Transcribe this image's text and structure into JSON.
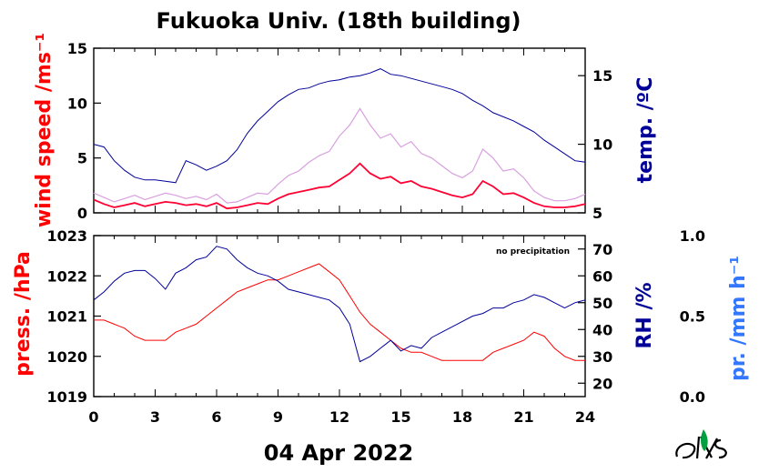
{
  "title": "Fukuoka Univ. (18th building)",
  "date_label": "04 Apr 2022",
  "note": "no precipitation",
  "colors": {
    "wind": "#ff0033",
    "wind_gust": "#d9a0e0",
    "temp": "#000099",
    "press": "#ff0000",
    "rh": "#000099",
    "precip": "#3377ff"
  },
  "chart_data": [
    {
      "type": "line",
      "panel": "top",
      "xlim": [
        0,
        24
      ],
      "x_ticks": [
        0,
        3,
        6,
        9,
        12,
        15,
        18,
        21,
        24
      ],
      "left_axis": {
        "label": "wind speed /ms⁻¹",
        "ylim": [
          0,
          15
        ],
        "ticks": [
          0,
          5,
          10,
          15
        ]
      },
      "right_axis": {
        "label": "temp. /ºC",
        "ylim": [
          5,
          17
        ],
        "ticks": [
          5,
          10,
          15
        ]
      },
      "series": [
        {
          "name": "wind",
          "axis": "left",
          "x": [
            0,
            0.5,
            1,
            1.5,
            2,
            2.5,
            3,
            3.5,
            4,
            4.5,
            5,
            5.5,
            6,
            6.5,
            7,
            7.5,
            8,
            8.5,
            9,
            9.5,
            10,
            10.5,
            11,
            11.5,
            12,
            12.5,
            13,
            13.5,
            14,
            14.5,
            15,
            15.5,
            16,
            16.5,
            17,
            17.5,
            18,
            18.5,
            19,
            19.5,
            20,
            20.5,
            21,
            21.5,
            22,
            22.5,
            23,
            23.5,
            24
          ],
          "y": [
            1.2,
            0.8,
            0.5,
            0.7,
            0.9,
            0.6,
            0.8,
            1.0,
            0.9,
            0.7,
            0.8,
            0.6,
            0.9,
            0.4,
            0.5,
            0.7,
            0.9,
            0.8,
            1.3,
            1.7,
            1.9,
            2.1,
            2.3,
            2.4,
            3.0,
            3.6,
            4.5,
            3.6,
            3.1,
            3.3,
            2.7,
            2.9,
            2.4,
            2.2,
            1.9,
            1.6,
            1.4,
            1.7,
            2.9,
            2.4,
            1.7,
            1.8,
            1.4,
            0.9,
            0.6,
            0.5,
            0.5,
            0.6,
            0.8
          ]
        },
        {
          "name": "wind gust",
          "axis": "left",
          "x": [
            0,
            0.5,
            1,
            1.5,
            2,
            2.5,
            3,
            3.5,
            4,
            4.5,
            5,
            5.5,
            6,
            6.5,
            7,
            7.5,
            8,
            8.5,
            9,
            9.5,
            10,
            10.5,
            11,
            11.5,
            12,
            12.5,
            13,
            13.5,
            14,
            14.5,
            15,
            15.5,
            16,
            16.5,
            17,
            17.5,
            18,
            18.5,
            19,
            19.5,
            20,
            20.5,
            21,
            21.5,
            22,
            22.5,
            23,
            23.5,
            24
          ],
          "y": [
            1.8,
            1.4,
            1.0,
            1.3,
            1.6,
            1.2,
            1.5,
            1.8,
            1.6,
            1.3,
            1.5,
            1.2,
            1.7,
            0.9,
            1.0,
            1.4,
            1.8,
            1.7,
            2.6,
            3.4,
            3.8,
            4.6,
            5.2,
            5.6,
            7.0,
            8.0,
            9.5,
            8.0,
            6.8,
            7.2,
            6.0,
            6.5,
            5.4,
            5.0,
            4.3,
            3.6,
            3.2,
            3.8,
            5.8,
            5.0,
            3.8,
            4.0,
            3.2,
            2.0,
            1.4,
            1.1,
            1.1,
            1.3,
            1.7
          ]
        },
        {
          "name": "temp",
          "axis": "right",
          "x": [
            0,
            0.5,
            1,
            1.5,
            2,
            2.5,
            3,
            3.5,
            4,
            4.5,
            5,
            5.5,
            6,
            6.5,
            7,
            7.5,
            8,
            8.5,
            9,
            9.5,
            10,
            10.5,
            11,
            11.5,
            12,
            12.5,
            13,
            13.5,
            14,
            14.5,
            15,
            15.5,
            16,
            16.5,
            17,
            17.5,
            18,
            18.5,
            19,
            19.5,
            20,
            20.5,
            21,
            21.5,
            22,
            22.5,
            23,
            23.5,
            24
          ],
          "y": [
            10.0,
            9.8,
            8.8,
            8.1,
            7.6,
            7.4,
            7.4,
            7.3,
            7.2,
            8.8,
            8.5,
            8.1,
            8.4,
            8.8,
            9.6,
            10.8,
            11.7,
            12.4,
            13.1,
            13.6,
            14.0,
            14.1,
            14.4,
            14.6,
            14.7,
            14.9,
            15.0,
            15.2,
            15.5,
            15.1,
            15.0,
            14.8,
            14.6,
            14.4,
            14.2,
            14.0,
            13.7,
            13.2,
            12.8,
            12.3,
            12.0,
            11.7,
            11.3,
            10.9,
            10.3,
            9.8,
            9.3,
            8.8,
            8.7
          ]
        }
      ]
    },
    {
      "type": "line",
      "panel": "bottom",
      "xlim": [
        0,
        24
      ],
      "x_ticks": [
        0,
        3,
        6,
        9,
        12,
        15,
        18,
        21,
        24
      ],
      "left_axis": {
        "label": "press. /hPa",
        "ylim": [
          1019,
          1023
        ],
        "ticks": [
          1019,
          1020,
          1021,
          1022,
          1023
        ]
      },
      "right_axis": {
        "label": "RH /%",
        "ylim": [
          15,
          75
        ],
        "ticks": [
          20,
          30,
          40,
          50,
          60,
          70
        ]
      },
      "extra_axis": {
        "label": "pr. /mm h⁻¹",
        "ylim": [
          0,
          1
        ],
        "ticks": [
          "0.0",
          "0.5",
          "1.0"
        ]
      },
      "series": [
        {
          "name": "press",
          "axis": "left",
          "x": [
            0,
            0.5,
            1,
            1.5,
            2,
            2.5,
            3,
            3.5,
            4,
            4.5,
            5,
            5.5,
            6,
            6.5,
            7,
            7.5,
            8,
            8.5,
            9,
            9.5,
            10,
            10.5,
            11,
            11.5,
            12,
            12.5,
            13,
            13.5,
            14,
            14.5,
            15,
            15.5,
            16,
            16.5,
            17,
            17.5,
            18,
            18.5,
            19,
            19.5,
            20,
            20.5,
            21,
            21.5,
            22,
            22.5,
            23,
            23.5,
            24
          ],
          "y": [
            1020.9,
            1020.9,
            1020.8,
            1020.7,
            1020.5,
            1020.4,
            1020.4,
            1020.4,
            1020.6,
            1020.7,
            1020.8,
            1021.0,
            1021.2,
            1021.4,
            1021.6,
            1021.7,
            1021.8,
            1021.9,
            1021.9,
            1022.0,
            1022.1,
            1022.2,
            1022.3,
            1022.1,
            1021.9,
            1021.5,
            1021.1,
            1020.8,
            1020.6,
            1020.4,
            1020.2,
            1020.1,
            1020.1,
            1020.0,
            1019.9,
            1019.9,
            1019.9,
            1019.9,
            1019.9,
            1020.1,
            1020.2,
            1020.3,
            1020.4,
            1020.6,
            1020.5,
            1020.2,
            1020.0,
            1019.9,
            1019.9
          ]
        },
        {
          "name": "RH",
          "axis": "right",
          "x": [
            0,
            0.5,
            1,
            1.5,
            2,
            2.5,
            3,
            3.5,
            4,
            4.5,
            5,
            5.5,
            6,
            6.5,
            7,
            7.5,
            8,
            8.5,
            9,
            9.5,
            10,
            10.5,
            11,
            11.5,
            12,
            12.5,
            13,
            13.5,
            14,
            14.5,
            15,
            15.5,
            16,
            16.5,
            17,
            17.5,
            18,
            18.5,
            19,
            19.5,
            20,
            20.5,
            21,
            21.5,
            22,
            22.5,
            23,
            23.5,
            24
          ],
          "y": [
            51,
            54,
            58,
            61,
            62,
            62,
            59,
            55,
            61,
            63,
            66,
            67,
            71,
            70,
            66,
            63,
            61,
            60,
            58,
            55,
            54,
            53,
            52,
            51,
            48,
            42,
            28,
            30,
            33,
            36,
            32,
            34,
            33,
            37,
            39,
            41,
            43,
            45,
            46,
            48,
            48,
            50,
            51,
            53,
            52,
            50,
            48,
            50,
            51
          ]
        }
      ]
    }
  ]
}
